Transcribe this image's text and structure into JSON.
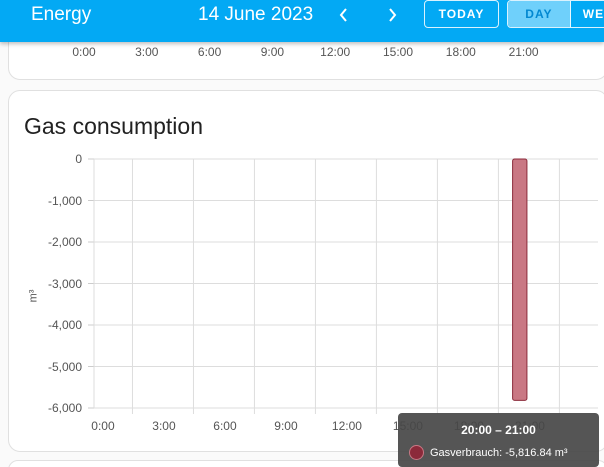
{
  "header": {
    "app_title": "Energy",
    "date": "14 June 2023",
    "today_label": "TODAY",
    "period_options": [
      "DAY",
      "WE"
    ],
    "selected_period": "DAY",
    "accent_color": "#03a9f4"
  },
  "previous_card": {
    "x_ticks": [
      "0:00",
      "3:00",
      "6:00",
      "9:00",
      "12:00",
      "15:00",
      "18:00",
      "21:00"
    ]
  },
  "gas_card": {
    "title": "Gas consumption"
  },
  "chart_data": {
    "type": "bar",
    "title": "Gas consumption",
    "ylabel": "m³",
    "xlabel": "",
    "x_ticks": [
      "0:00",
      "3:00",
      "6:00",
      "9:00",
      "12:00",
      "15:00",
      "18:00",
      "21:00"
    ],
    "y_ticks": [
      "0",
      "-1,000",
      "-2,000",
      "-3,000",
      "-4,000",
      "-5,000",
      "-6,000"
    ],
    "ylim": [
      -6000,
      0
    ],
    "xlim_hours": [
      0,
      24
    ],
    "grid": true,
    "series": [
      {
        "name": "Gasverbrauch",
        "color": "#c97884",
        "points": [
          {
            "hour_start": 20,
            "hour_end": 21,
            "value": -5816.84
          }
        ]
      }
    ]
  },
  "tooltip": {
    "title": "20:00 – 21:00",
    "series_label": "Gasverbrauch: -5,816.84 m³",
    "dot_color": "#8b2a3a"
  }
}
